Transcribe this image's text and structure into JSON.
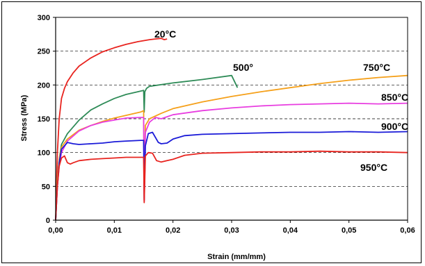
{
  "chart_data": {
    "type": "line",
    "xlabel": "Strain (mm/mm)",
    "ylabel": "Stress (MPa)",
    "xlim": [
      0,
      0.06
    ],
    "ylim": [
      0,
      300
    ],
    "x_ticks": [
      "0,00",
      "0,01",
      "0,02",
      "0,03",
      "0,04",
      "0,05",
      "0,06"
    ],
    "y_ticks": [
      "0",
      "50",
      "100",
      "150",
      "200",
      "250",
      "300"
    ],
    "grid": "horizontal-dashed",
    "series": [
      {
        "name": "20°C",
        "color": "#e8231e",
        "x": [
          0,
          0.0003,
          0.0006,
          0.001,
          0.0015,
          0.002,
          0.003,
          0.004,
          0.006,
          0.008,
          0.01,
          0.012,
          0.014,
          0.016,
          0.017,
          0.018,
          0.0185,
          0.019
        ],
        "y": [
          0,
          100,
          150,
          180,
          195,
          205,
          218,
          228,
          240,
          249,
          255,
          260,
          264,
          267,
          268,
          269,
          267,
          268
        ]
      },
      {
        "name": "500°",
        "color": "#2e8b57",
        "x": [
          0,
          0.0003,
          0.0006,
          0.001,
          0.002,
          0.004,
          0.006,
          0.008,
          0.01,
          0.012,
          0.014,
          0.015,
          0.0151,
          0.0152,
          0.0155,
          0.016,
          0.02,
          0.025,
          0.03,
          0.031
        ],
        "y": [
          0,
          60,
          90,
          112,
          128,
          148,
          163,
          172,
          180,
          186,
          190,
          192,
          160,
          190,
          195,
          198,
          203,
          208,
          214,
          196
        ]
      },
      {
        "name": "750°C",
        "color": "#f5a01a",
        "x": [
          0,
          0.0003,
          0.0006,
          0.001,
          0.002,
          0.004,
          0.006,
          0.008,
          0.01,
          0.012,
          0.0145,
          0.015,
          0.0151,
          0.0153,
          0.016,
          0.018,
          0.02,
          0.025,
          0.03,
          0.035,
          0.04,
          0.045,
          0.05,
          0.055,
          0.06
        ],
        "y": [
          0,
          60,
          90,
          108,
          120,
          133,
          140,
          146,
          151,
          155,
          160,
          162,
          30,
          140,
          150,
          158,
          165,
          175,
          183,
          190,
          196,
          202,
          207,
          211,
          214
        ]
      },
      {
        "name": "850°C",
        "color": "#e83de0",
        "x": [
          0,
          0.0003,
          0.0006,
          0.001,
          0.002,
          0.004,
          0.006,
          0.008,
          0.01,
          0.012,
          0.0145,
          0.015,
          0.0151,
          0.0153,
          0.016,
          0.017,
          0.018,
          0.019,
          0.02,
          0.025,
          0.03,
          0.035,
          0.04,
          0.045,
          0.05,
          0.055,
          0.06
        ],
        "y": [
          0,
          50,
          80,
          100,
          117,
          132,
          140,
          145,
          148,
          151,
          152,
          152,
          28,
          130,
          145,
          152,
          150,
          153,
          156,
          162,
          166,
          169,
          171,
          172,
          173,
          172,
          173
        ]
      },
      {
        "name": "900°C",
        "color": "#1a1ad8",
        "x": [
          0,
          0.0003,
          0.0006,
          0.001,
          0.002,
          0.003,
          0.004,
          0.006,
          0.008,
          0.01,
          0.012,
          0.0145,
          0.015,
          0.0151,
          0.0153,
          0.0158,
          0.0165,
          0.0175,
          0.018,
          0.019,
          0.02,
          0.022,
          0.025,
          0.03,
          0.035,
          0.04,
          0.045,
          0.05,
          0.055,
          0.06
        ],
        "y": [
          0,
          50,
          85,
          105,
          115,
          113,
          112,
          113,
          114,
          116,
          117,
          118,
          118,
          30,
          110,
          128,
          130,
          115,
          113,
          114,
          120,
          125,
          127,
          128,
          129,
          130,
          130,
          131,
          130,
          131
        ]
      },
      {
        "name": "950°C",
        "color": "#e8231e",
        "x": [
          0,
          0.0003,
          0.0006,
          0.001,
          0.0015,
          0.002,
          0.0025,
          0.003,
          0.004,
          0.006,
          0.008,
          0.01,
          0.012,
          0.0145,
          0.015,
          0.0151,
          0.0153,
          0.0158,
          0.0165,
          0.0172,
          0.018,
          0.019,
          0.02,
          0.022,
          0.025,
          0.03,
          0.035,
          0.04,
          0.045,
          0.05,
          0.055,
          0.06
        ],
        "y": [
          0,
          50,
          80,
          92,
          95,
          85,
          83,
          85,
          88,
          90,
          91,
          92,
          93,
          93,
          93,
          26,
          95,
          100,
          99,
          88,
          86,
          88,
          90,
          96,
          99,
          100,
          101,
          101,
          102,
          101,
          101,
          100
        ]
      }
    ]
  }
}
